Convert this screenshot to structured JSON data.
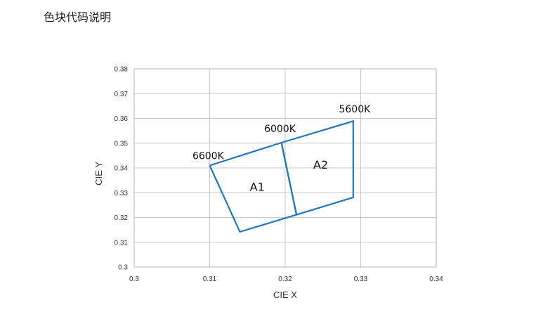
{
  "page": {
    "title": "色块代码说明"
  },
  "chart_data": {
    "type": "line",
    "title": "",
    "xlabel": "CIE X",
    "ylabel": "CIE Y",
    "xlim": [
      0.3,
      0.34
    ],
    "ylim": [
      0.3,
      0.38
    ],
    "x_ticks": [
      0.3,
      0.31,
      0.32,
      0.33,
      0.34
    ],
    "x_tick_labels": [
      "0.3",
      "0.31",
      "0.32",
      "0.33",
      "0.34"
    ],
    "y_ticks": [
      0.3,
      0.31,
      0.32,
      0.33,
      0.34,
      0.35,
      0.36,
      0.37,
      0.38
    ],
    "y_tick_labels": [
      "0.3",
      "0.31",
      "0.32",
      "0.33",
      "0.34",
      "0.35",
      "0.36",
      "0.37",
      "0.38"
    ],
    "grid": true,
    "line_color": "#1f77c4",
    "series": [
      {
        "name": "A1",
        "points": [
          [
            0.31,
            0.341
          ],
          [
            0.3195,
            0.3502
          ],
          [
            0.3215,
            0.3211
          ],
          [
            0.314,
            0.3142
          ],
          [
            0.31,
            0.341
          ]
        ]
      },
      {
        "name": "A2",
        "points": [
          [
            0.3195,
            0.3502
          ],
          [
            0.329,
            0.3589
          ],
          [
            0.329,
            0.3281
          ],
          [
            0.3215,
            0.3211
          ],
          [
            0.3195,
            0.3502
          ]
        ]
      }
    ],
    "annotations": [
      {
        "text": "6600K",
        "x": 0.3098,
        "y": 0.3436
      },
      {
        "text": "6000K",
        "x": 0.3193,
        "y": 0.3545
      },
      {
        "text": "5600K",
        "x": 0.3292,
        "y": 0.3624
      }
    ],
    "region_labels": [
      {
        "text": "A1",
        "x": 0.3163,
        "y": 0.3308
      },
      {
        "text": "A2",
        "x": 0.3247,
        "y": 0.3397
      }
    ]
  }
}
